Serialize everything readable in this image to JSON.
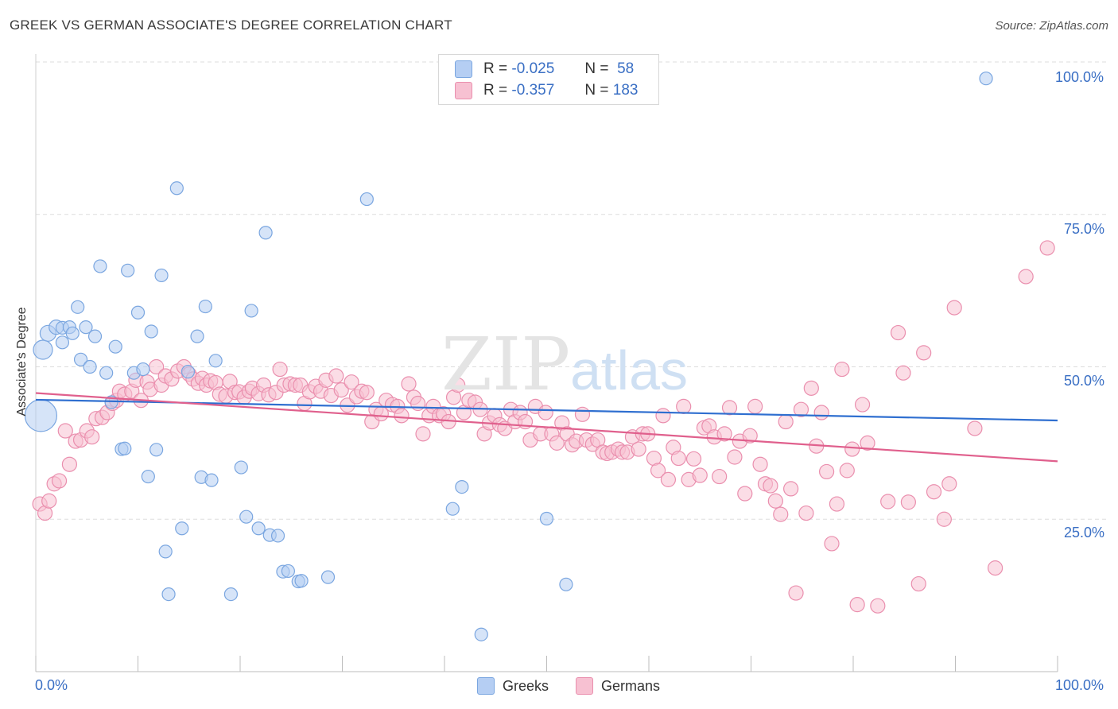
{
  "title": "GREEK VS GERMAN ASSOCIATE'S DEGREE CORRELATION CHART",
  "source": "Source: ZipAtlas.com",
  "watermark": {
    "zip": "ZIP",
    "atlas": "atlas"
  },
  "colors": {
    "greeks_fill": "#b5cef3",
    "greeks_stroke": "#7aa6e0",
    "greeks_line": "#2f6fd0",
    "germans_fill": "#f7c1d2",
    "germans_stroke": "#ea8fae",
    "germans_line": "#e0608d",
    "tick_text": "#3a6fc4",
    "grid": "#dddddd"
  },
  "legend": {
    "rows": [
      {
        "r_label": "R =",
        "r_value": "-0.025",
        "n_label": "N =",
        "n_value": "58"
      },
      {
        "r_label": "R =",
        "r_value": "-0.357",
        "n_label": "N =",
        "n_value": "183"
      }
    ],
    "bottom": [
      "Greeks",
      "Germans"
    ]
  },
  "chart_data": {
    "type": "scatter",
    "title": "GREEK VS GERMAN ASSOCIATE'S DEGREE CORRELATION CHART",
    "xlabel": "",
    "ylabel": "Associate's Degree",
    "xlim": [
      0,
      100
    ],
    "ylim": [
      0,
      100
    ],
    "x_tick_labels": [
      "0.0%",
      "100.0%"
    ],
    "y_tick_labels": [
      "100.0%",
      "75.0%",
      "50.0%",
      "25.0%"
    ],
    "y_tick_values": [
      100,
      75,
      50,
      25
    ],
    "grid": true,
    "legend_position": "top-center",
    "series": [
      {
        "name": "Greeks",
        "r": -0.025,
        "n": 58,
        "trend": {
          "x": [
            0,
            100
          ],
          "y": [
            44.6,
            41.2
          ]
        },
        "points": [
          [
            0.5,
            42.0,
            20
          ],
          [
            0.7,
            52.8,
            12
          ],
          [
            1.2,
            55.5,
            10
          ],
          [
            2.0,
            56.5,
            9
          ],
          [
            2.6,
            56.4,
            8
          ],
          [
            2.6,
            54.0,
            8
          ],
          [
            3.3,
            56.5,
            8
          ],
          [
            3.6,
            55.5,
            8
          ],
          [
            4.1,
            59.8,
            8
          ],
          [
            4.4,
            51.2,
            8
          ],
          [
            4.9,
            56.5,
            8
          ],
          [
            5.3,
            50.0,
            8
          ],
          [
            5.8,
            55.0,
            8
          ],
          [
            6.3,
            66.5,
            8
          ],
          [
            6.9,
            49.0,
            8
          ],
          [
            7.4,
            44.2,
            8
          ],
          [
            7.8,
            53.3,
            8
          ],
          [
            8.4,
            36.5,
            8
          ],
          [
            8.7,
            36.6,
            8
          ],
          [
            9.0,
            65.8,
            8
          ],
          [
            9.6,
            49.0,
            8
          ],
          [
            10.0,
            58.9,
            8
          ],
          [
            10.5,
            49.6,
            8
          ],
          [
            11.0,
            32.0,
            8
          ],
          [
            11.3,
            55.8,
            8
          ],
          [
            11.8,
            36.4,
            8
          ],
          [
            12.3,
            65.0,
            8
          ],
          [
            12.7,
            19.7,
            8
          ],
          [
            13.0,
            12.7,
            8
          ],
          [
            13.8,
            79.3,
            8
          ],
          [
            14.3,
            23.5,
            8
          ],
          [
            14.9,
            49.2,
            8
          ],
          [
            15.8,
            55.0,
            8
          ],
          [
            16.2,
            31.9,
            8
          ],
          [
            16.6,
            59.9,
            8
          ],
          [
            17.2,
            31.4,
            8
          ],
          [
            17.6,
            51.0,
            8
          ],
          [
            19.1,
            12.7,
            8
          ],
          [
            20.1,
            33.5,
            8
          ],
          [
            20.6,
            25.4,
            8
          ],
          [
            21.1,
            59.2,
            8
          ],
          [
            21.8,
            23.5,
            8
          ],
          [
            22.5,
            72.0,
            8
          ],
          [
            22.9,
            22.4,
            8
          ],
          [
            23.7,
            22.3,
            8
          ],
          [
            24.2,
            16.4,
            8
          ],
          [
            24.7,
            16.5,
            8
          ],
          [
            25.7,
            14.8,
            8
          ],
          [
            26.0,
            14.9,
            8
          ],
          [
            28.6,
            15.5,
            8
          ],
          [
            32.4,
            77.5,
            8
          ],
          [
            40.8,
            26.7,
            8
          ],
          [
            41.7,
            30.3,
            8
          ],
          [
            43.6,
            6.1,
            8
          ],
          [
            50.0,
            25.1,
            8
          ],
          [
            51.9,
            14.3,
            8
          ],
          [
            56.8,
            100.0,
            8
          ],
          [
            93.0,
            97.3,
            8
          ]
        ]
      },
      {
        "name": "Germans",
        "r": -0.357,
        "n": 183,
        "trend": {
          "x": [
            0,
            100
          ],
          "y": [
            45.7,
            34.5
          ]
        },
        "points": [
          [
            0.4,
            27.5
          ],
          [
            0.9,
            26.0
          ],
          [
            1.3,
            28.0
          ],
          [
            1.8,
            30.8
          ],
          [
            2.3,
            31.3
          ],
          [
            2.9,
            39.5
          ],
          [
            3.3,
            34.0
          ],
          [
            3.9,
            37.8
          ],
          [
            4.4,
            38.0
          ],
          [
            5.0,
            39.5
          ],
          [
            5.5,
            38.5
          ],
          [
            5.9,
            41.5
          ],
          [
            6.5,
            41.7
          ],
          [
            7.0,
            42.5
          ],
          [
            7.5,
            44.0
          ],
          [
            7.9,
            44.5
          ],
          [
            8.2,
            46.0
          ],
          [
            8.7,
            45.5
          ],
          [
            9.4,
            46.0
          ],
          [
            9.8,
            47.8
          ],
          [
            10.3,
            44.5
          ],
          [
            10.9,
            47.5
          ],
          [
            11.2,
            46.3
          ],
          [
            11.8,
            50.0
          ],
          [
            12.3,
            47.0
          ],
          [
            12.7,
            48.5
          ],
          [
            13.3,
            48.0
          ],
          [
            13.9,
            49.3
          ],
          [
            14.5,
            50.0
          ],
          [
            15.0,
            48.8
          ],
          [
            15.4,
            48.0
          ],
          [
            15.9,
            47.3
          ],
          [
            16.3,
            48.1
          ],
          [
            16.7,
            47.0
          ],
          [
            17.1,
            47.7
          ],
          [
            17.6,
            47.4
          ],
          [
            18.0,
            45.5
          ],
          [
            18.6,
            45.2
          ],
          [
            19.0,
            47.6
          ],
          [
            19.5,
            45.8
          ],
          [
            19.9,
            45.9
          ],
          [
            20.4,
            45.0
          ],
          [
            20.9,
            46.0
          ],
          [
            21.2,
            46.5
          ],
          [
            21.8,
            45.6
          ],
          [
            22.3,
            47.0
          ],
          [
            22.8,
            45.4
          ],
          [
            23.5,
            45.8
          ],
          [
            23.9,
            49.6
          ],
          [
            24.3,
            47.0
          ],
          [
            24.9,
            47.2
          ],
          [
            25.4,
            47.0
          ],
          [
            25.9,
            47.0
          ],
          [
            26.3,
            44.0
          ],
          [
            26.8,
            45.9
          ],
          [
            27.4,
            46.8
          ],
          [
            27.9,
            46.0
          ],
          [
            28.4,
            47.8
          ],
          [
            28.9,
            45.3
          ],
          [
            29.4,
            48.5
          ],
          [
            29.9,
            46.2
          ],
          [
            30.5,
            43.7
          ],
          [
            30.9,
            47.5
          ],
          [
            31.4,
            45.1
          ],
          [
            31.9,
            46.0
          ],
          [
            32.4,
            45.8
          ],
          [
            32.9,
            41.0
          ],
          [
            33.3,
            43.0
          ],
          [
            33.8,
            42.3
          ],
          [
            34.3,
            44.5
          ],
          [
            34.9,
            43.8
          ],
          [
            35.4,
            43.5
          ],
          [
            35.8,
            42.0
          ],
          [
            36.5,
            47.2
          ],
          [
            37.0,
            45.0
          ],
          [
            37.4,
            44.0
          ],
          [
            37.9,
            39.0
          ],
          [
            38.5,
            42.0
          ],
          [
            38.9,
            43.5
          ],
          [
            39.5,
            42.0
          ],
          [
            39.9,
            42.3
          ],
          [
            40.4,
            41.0
          ],
          [
            40.9,
            45.0
          ],
          [
            41.3,
            47.0
          ],
          [
            41.9,
            42.5
          ],
          [
            42.4,
            44.5
          ],
          [
            43.0,
            44.2
          ],
          [
            43.5,
            43.0
          ],
          [
            43.9,
            39.0
          ],
          [
            44.4,
            40.8
          ],
          [
            44.9,
            42.0
          ],
          [
            45.4,
            40.5
          ],
          [
            45.9,
            39.9
          ],
          [
            46.5,
            43.0
          ],
          [
            46.9,
            41.0
          ],
          [
            47.4,
            42.5
          ],
          [
            47.9,
            41.0
          ],
          [
            48.4,
            38.0
          ],
          [
            48.9,
            43.5
          ],
          [
            49.4,
            39.0
          ],
          [
            49.9,
            42.5
          ],
          [
            50.5,
            39.0
          ],
          [
            51.0,
            37.5
          ],
          [
            51.5,
            40.8
          ],
          [
            52.0,
            39.0
          ],
          [
            52.5,
            37.2
          ],
          [
            52.9,
            37.8
          ],
          [
            53.5,
            42.2
          ],
          [
            53.9,
            38.0
          ],
          [
            54.5,
            37.3
          ],
          [
            55.0,
            38.0
          ],
          [
            55.5,
            36.0
          ],
          [
            55.9,
            35.8
          ],
          [
            56.4,
            36.0
          ],
          [
            57.0,
            36.5
          ],
          [
            57.4,
            36.0
          ],
          [
            57.9,
            36.0
          ],
          [
            58.4,
            38.5
          ],
          [
            59.0,
            36.5
          ],
          [
            59.4,
            39.0
          ],
          [
            59.9,
            39.0
          ],
          [
            60.5,
            35.0
          ],
          [
            60.9,
            33.0
          ],
          [
            61.4,
            42.0
          ],
          [
            61.9,
            31.5
          ],
          [
            62.4,
            36.8
          ],
          [
            62.9,
            35.0
          ],
          [
            63.4,
            43.5
          ],
          [
            63.9,
            31.5
          ],
          [
            64.4,
            34.9
          ],
          [
            65.0,
            32.2
          ],
          [
            65.4,
            40.0
          ],
          [
            65.9,
            40.3
          ],
          [
            66.4,
            38.5
          ],
          [
            66.9,
            32.0
          ],
          [
            67.4,
            39.0
          ],
          [
            67.9,
            43.3
          ],
          [
            68.4,
            35.2
          ],
          [
            68.9,
            37.8
          ],
          [
            69.4,
            29.2
          ],
          [
            69.9,
            38.7
          ],
          [
            70.4,
            43.5
          ],
          [
            70.9,
            34.0
          ],
          [
            71.4,
            30.8
          ],
          [
            71.9,
            30.5
          ],
          [
            72.4,
            28.0
          ],
          [
            72.9,
            25.8
          ],
          [
            73.4,
            41.0
          ],
          [
            73.9,
            30.0
          ],
          [
            74.4,
            12.9
          ],
          [
            74.9,
            43.0
          ],
          [
            75.4,
            26.0
          ],
          [
            75.9,
            46.5
          ],
          [
            76.4,
            37.0
          ],
          [
            76.9,
            42.5
          ],
          [
            77.4,
            32.8
          ],
          [
            77.9,
            21.0
          ],
          [
            78.4,
            27.5
          ],
          [
            78.9,
            49.6
          ],
          [
            79.4,
            33.0
          ],
          [
            79.9,
            36.5
          ],
          [
            80.4,
            11.0
          ],
          [
            80.9,
            43.8
          ],
          [
            81.4,
            37.5
          ],
          [
            82.4,
            10.8
          ],
          [
            83.4,
            27.9
          ],
          [
            84.4,
            55.6
          ],
          [
            84.9,
            49.0
          ],
          [
            85.4,
            27.8
          ],
          [
            86.4,
            14.4
          ],
          [
            86.9,
            52.3
          ],
          [
            87.9,
            29.5
          ],
          [
            88.9,
            25.0
          ],
          [
            89.4,
            30.8
          ],
          [
            89.9,
            59.7
          ],
          [
            91.9,
            39.9
          ],
          [
            93.9,
            17.0
          ],
          [
            96.9,
            64.8
          ],
          [
            99.0,
            69.5
          ]
        ]
      }
    ]
  }
}
